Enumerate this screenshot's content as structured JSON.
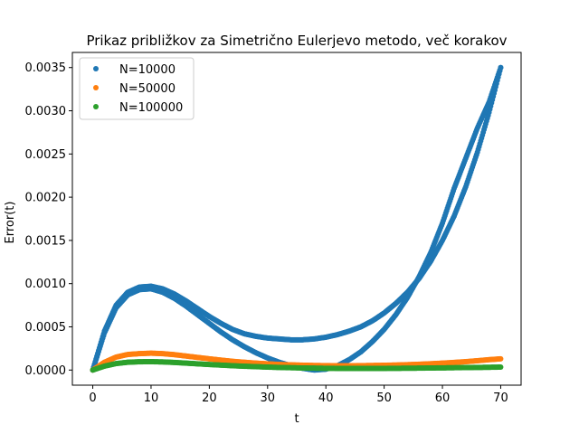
{
  "chart_data": {
    "type": "scatter",
    "title": "Prikaz približkov za Simetrično Eulerjevo metodo, več korakov",
    "xlabel": "t",
    "ylabel": "Error(t)",
    "xlim": [
      -3.5,
      73.5
    ],
    "ylim": [
      -0.000175,
      0.003675
    ],
    "xticks": [
      0,
      10,
      20,
      30,
      40,
      50,
      60,
      70
    ],
    "xtick_labels": [
      "0",
      "10",
      "20",
      "30",
      "40",
      "50",
      "60",
      "70"
    ],
    "yticks": [
      0.0,
      0.0005,
      0.001,
      0.0015,
      0.002,
      0.0025,
      0.003,
      0.0035
    ],
    "ytick_labels": [
      "0.0000",
      "0.0005",
      "0.0010",
      "0.0015",
      "0.0020",
      "0.0025",
      "0.0030",
      "0.0035"
    ],
    "grid": false,
    "legend_position": "top-left",
    "series": [
      {
        "name": "N=10000",
        "color": "#1f77b4",
        "bands": [
          {
            "x": [
              0,
              2,
              4,
              6,
              8,
              10,
              12,
              14,
              16,
              18,
              20,
              22,
              24,
              26,
              28,
              30,
              32,
              34,
              36,
              38,
              40,
              42,
              44,
              46,
              48,
              50,
              52,
              54,
              56,
              58,
              60,
              62,
              64,
              66,
              68,
              70
            ],
            "y": [
              0.0,
              0.00045,
              0.00075,
              0.0009,
              0.00096,
              0.00097,
              0.00094,
              0.00088,
              0.0008,
              0.00071,
              0.00062,
              0.00054,
              0.00047,
              0.00042,
              0.00039,
              0.00037,
              0.00036,
              0.00035,
              0.00035,
              0.00036,
              0.00038,
              0.00041,
              0.00045,
              0.0005,
              0.00057,
              0.00066,
              0.00077,
              0.0009,
              0.00106,
              0.00126,
              0.0015,
              0.00178,
              0.00212,
              0.00252,
              0.00298,
              0.0035
            ]
          },
          {
            "x": [
              0,
              2,
              4,
              6,
              8,
              10,
              12,
              14,
              16,
              18,
              20,
              22,
              24,
              26,
              28,
              30,
              32,
              34,
              36,
              38,
              40,
              42,
              44,
              46,
              48,
              50,
              52,
              54,
              56,
              58,
              60,
              62,
              64,
              66,
              68,
              70
            ],
            "y": [
              0.0,
              0.00043,
              0.00072,
              0.00087,
              0.00093,
              0.00094,
              0.0009,
              0.00083,
              0.00074,
              0.00064,
              0.00054,
              0.00044,
              0.00035,
              0.00027,
              0.0002,
              0.00014,
              9e-05,
              5e-05,
              2e-05,
              0.0,
              1e-05,
              5e-05,
              0.00012,
              0.00021,
              0.00033,
              0.00047,
              0.00064,
              0.00084,
              0.00108,
              0.00136,
              0.0017,
              0.0021,
              0.00245,
              0.0028,
              0.0031,
              0.0035
            ]
          }
        ]
      },
      {
        "name": "N=50000",
        "color": "#ff7f0e",
        "bands": [
          {
            "x": [
              0,
              2,
              4,
              6,
              8,
              10,
              12,
              14,
              16,
              18,
              20,
              22,
              24,
              26,
              28,
              30,
              32,
              34,
              36,
              38,
              40,
              42,
              44,
              46,
              48,
              50,
              52,
              54,
              56,
              58,
              60,
              62,
              64,
              66,
              68,
              70
            ],
            "y": [
              0.0,
              9e-05,
              0.00015,
              0.00018,
              0.00019,
              0.000195,
              0.00019,
              0.000178,
              0.000162,
              0.000146,
              0.00013,
              0.000115,
              0.000101,
              9e-05,
              8e-05,
              7.2e-05,
              6.5e-05,
              6e-05,
              5.6e-05,
              5.3e-05,
              5.1e-05,
              5e-05,
              5e-05,
              5.1e-05,
              5.3e-05,
              5.5e-05,
              5.8e-05,
              6.2e-05,
              6.7e-05,
              7.3e-05,
              8e-05,
              8.8e-05,
              9.7e-05,
              0.000108,
              0.00012,
              0.00013
            ]
          }
        ]
      },
      {
        "name": "N=100000",
        "color": "#2ca02c",
        "bands": [
          {
            "x": [
              0,
              2,
              4,
              6,
              8,
              10,
              12,
              14,
              16,
              18,
              20,
              22,
              24,
              26,
              28,
              30,
              32,
              34,
              36,
              38,
              40,
              42,
              44,
              46,
              48,
              50,
              52,
              54,
              56,
              58,
              60,
              62,
              64,
              66,
              68,
              70
            ],
            "y": [
              0.0,
              4.5e-05,
              7.5e-05,
              9e-05,
              9.6e-05,
              9.7e-05,
              9.4e-05,
              8.8e-05,
              8e-05,
              7.2e-05,
              6.4e-05,
              5.7e-05,
              5e-05,
              4.4e-05,
              3.9e-05,
              3.4e-05,
              3e-05,
              2.7e-05,
              2.4e-05,
              2.2e-05,
              2e-05,
              1.9e-05,
              1.8e-05,
              1.8e-05,
              1.8e-05,
              1.9e-05,
              2e-05,
              2.1e-05,
              2.2e-05,
              2.4e-05,
              2.5e-05,
              2.7e-05,
              2.9e-05,
              3e-05,
              3.2e-05,
              3.4e-05
            ]
          }
        ]
      }
    ]
  }
}
